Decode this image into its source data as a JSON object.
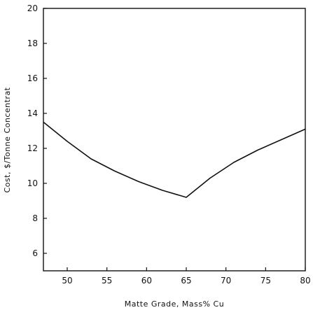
{
  "chart_data": {
    "type": "line",
    "title": "",
    "xlabel": "Matte Grade, Mass% Cu",
    "ylabel": "Cost, $/Tonne Concentrat",
    "xlim": [
      47,
      80
    ],
    "ylim": [
      5,
      20
    ],
    "xticks": [
      50,
      55,
      60,
      65,
      70,
      75,
      80
    ],
    "yticks": [
      6,
      8,
      10,
      12,
      14,
      16,
      18,
      20
    ],
    "grid": false,
    "series": [
      {
        "x": [
          47,
          50,
          53,
          56,
          59,
          62,
          65,
          68,
          71,
          74,
          77,
          80
        ],
        "y": [
          13.5,
          12.4,
          11.4,
          10.7,
          10.1,
          9.6,
          9.2,
          10.3,
          11.2,
          11.9,
          12.5,
          13.1
        ]
      }
    ]
  }
}
